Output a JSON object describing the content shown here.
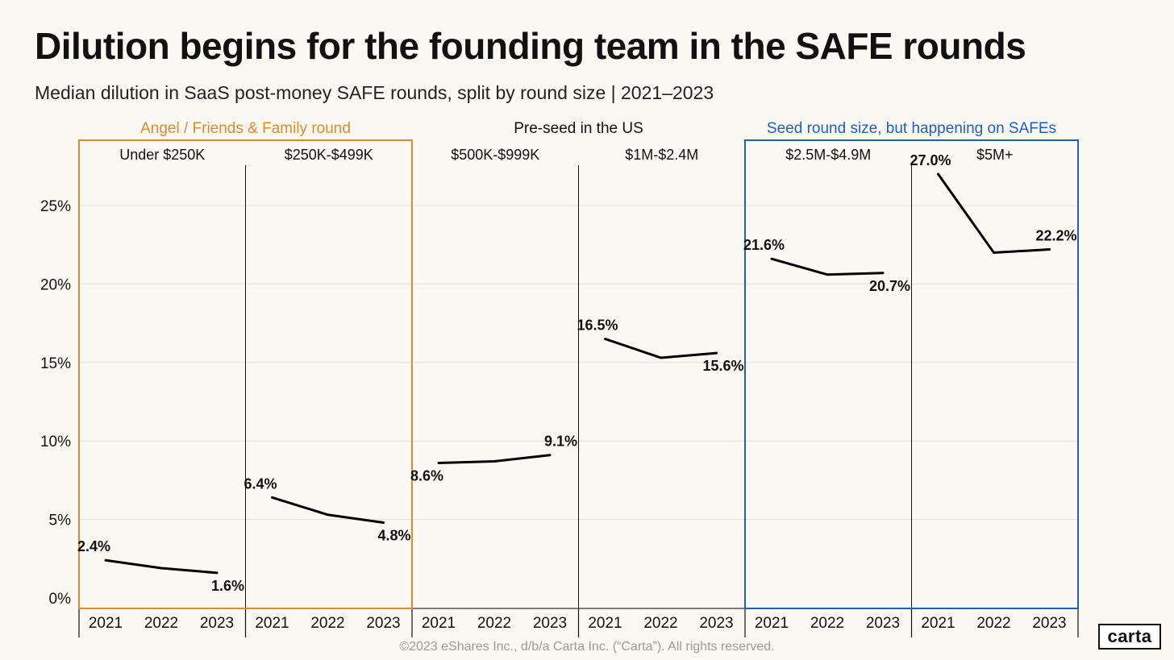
{
  "title": "Dilution begins for the founding team in the SAFE rounds",
  "subtitle": "Median dilution in SaaS post-money SAFE rounds, split by round size | 2021–2023",
  "footer": "©2023 eShares Inc., d/b/a Carta Inc. (“Carta”). All rights reserved.",
  "logo_text": "carta",
  "colors": {
    "background": "#faf8f3",
    "angel_group": "#e08a2e",
    "seed_group": "#1f5fc4",
    "preseed_group": "#111111",
    "line": "#000000",
    "grid": "#e2e0da"
  },
  "chart_data": {
    "type": "line",
    "title": "Dilution begins for the founding team in the SAFE rounds",
    "subtitle": "Median dilution in SaaS post-money SAFE rounds, split by round size | 2021–2023",
    "ylim": [
      0,
      28
    ],
    "yticks": [
      0,
      5,
      10,
      15,
      20,
      25
    ],
    "ytick_labels": [
      "0%",
      "5%",
      "10%",
      "15%",
      "20%",
      "25%"
    ],
    "grid": true,
    "x": [
      "2021",
      "2022",
      "2023"
    ],
    "groups": [
      {
        "label": "Angel / Friends & Family round",
        "color": "#e08a2e",
        "panels": [
          0,
          1
        ]
      },
      {
        "label": "Pre-seed in the US",
        "color": "#111111",
        "panels": [
          2,
          3
        ]
      },
      {
        "label": "Seed round size, but happening on SAFEs",
        "color": "#1f5fc4",
        "panels": [
          4,
          5
        ]
      }
    ],
    "series": [
      {
        "name": "Under $250K",
        "values": [
          2.4,
          1.9,
          1.6
        ],
        "labels": [
          "2.4%",
          "",
          "1.6%"
        ]
      },
      {
        "name": "$250K-$499K",
        "values": [
          6.4,
          5.3,
          4.8
        ],
        "labels": [
          "6.4%",
          "",
          "4.8%"
        ]
      },
      {
        "name": "$500K-$999K",
        "values": [
          8.6,
          8.7,
          9.1
        ],
        "labels": [
          "8.6%",
          "",
          "9.1%"
        ]
      },
      {
        "name": "$1M-$2.4M",
        "values": [
          16.5,
          15.3,
          15.6
        ],
        "labels": [
          "16.5%",
          "",
          "15.6%"
        ]
      },
      {
        "name": "$2.5M-$4.9M",
        "values": [
          21.6,
          20.6,
          20.7
        ],
        "labels": [
          "21.6%",
          "",
          "20.7%"
        ]
      },
      {
        "name": "$5M+",
        "values": [
          27.0,
          22.0,
          22.2
        ],
        "labels": [
          "27.0%",
          "",
          "22.2%"
        ]
      }
    ]
  }
}
